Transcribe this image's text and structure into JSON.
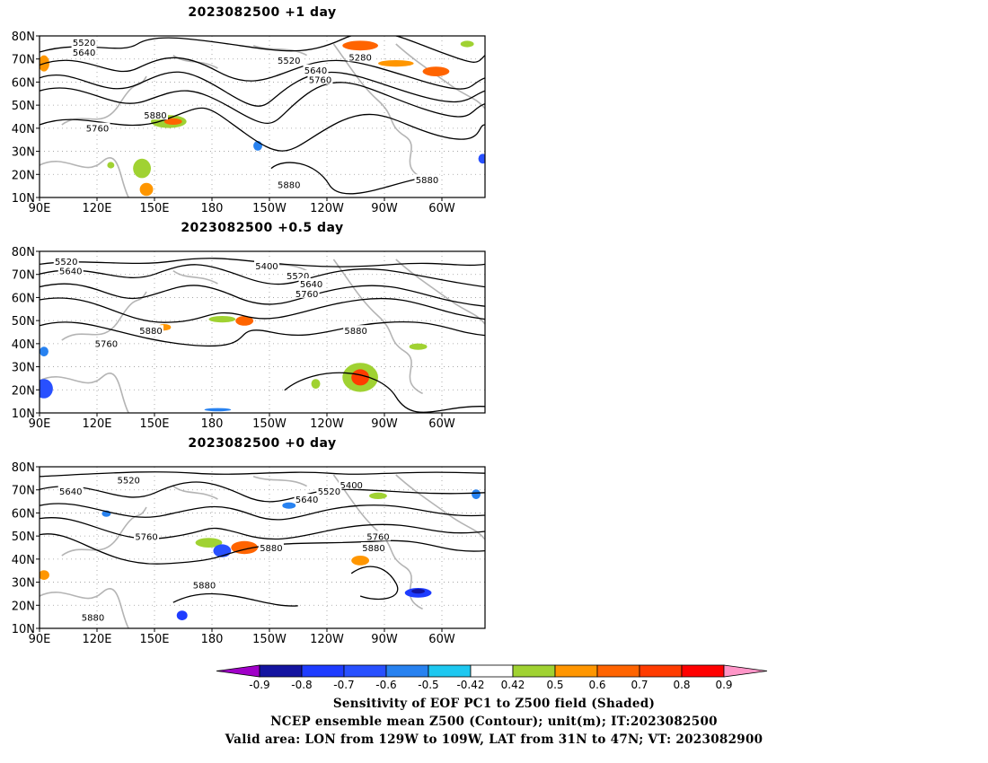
{
  "panels": [
    {
      "title": "2023082500  +1 day",
      "contour_labels": [
        "5520",
        "5640",
        "5520",
        "5640",
        "5760",
        "5280",
        "5880",
        "5760",
        "5880",
        "5880"
      ]
    },
    {
      "title": "2023082500  +0.5 day",
      "contour_labels": [
        "5520",
        "5640",
        "5400",
        "5520",
        "5640",
        "5760",
        "5880",
        "5760",
        "5880"
      ]
    },
    {
      "title": "2023082500  +0 day",
      "contour_labels": [
        "5640",
        "5520",
        "5400",
        "5520",
        "5640",
        "5760",
        "5880",
        "5760",
        "5880",
        "5880",
        "5880"
      ]
    }
  ],
  "axes": {
    "lat_labels": [
      "80N",
      "70N",
      "60N",
      "50N",
      "40N",
      "30N",
      "20N",
      "10N"
    ],
    "lon_labels": [
      "90E",
      "120E",
      "150E",
      "180",
      "150W",
      "120W",
      "90W",
      "60W"
    ]
  },
  "colorbar": {
    "labels": [
      "-0.9",
      "-0.8",
      "-0.7",
      "-0.6",
      "-0.5",
      "-0.42",
      "0.42",
      "0.5",
      "0.6",
      "0.7",
      "0.8",
      "0.9"
    ],
    "colors": [
      "#a000c8",
      "#1414a0",
      "#1e3cff",
      "#2850ff",
      "#2882f0",
      "#1ec8f0",
      "#ffffff",
      "#a0d232",
      "#ff9600",
      "#ff6400",
      "#ff3c00",
      "#ff0000",
      "#ff96c8"
    ]
  },
  "caption": {
    "line1": "Sensitivity of EOF PC1 to Z500 field (Shaded)",
    "line2": "NCEP ensemble mean Z500 (Contour); unit(m); IT:2023082500",
    "line3": "Valid area: LON from 129W to 109W, LAT from 31N to 47N; VT: 2023082900"
  }
}
